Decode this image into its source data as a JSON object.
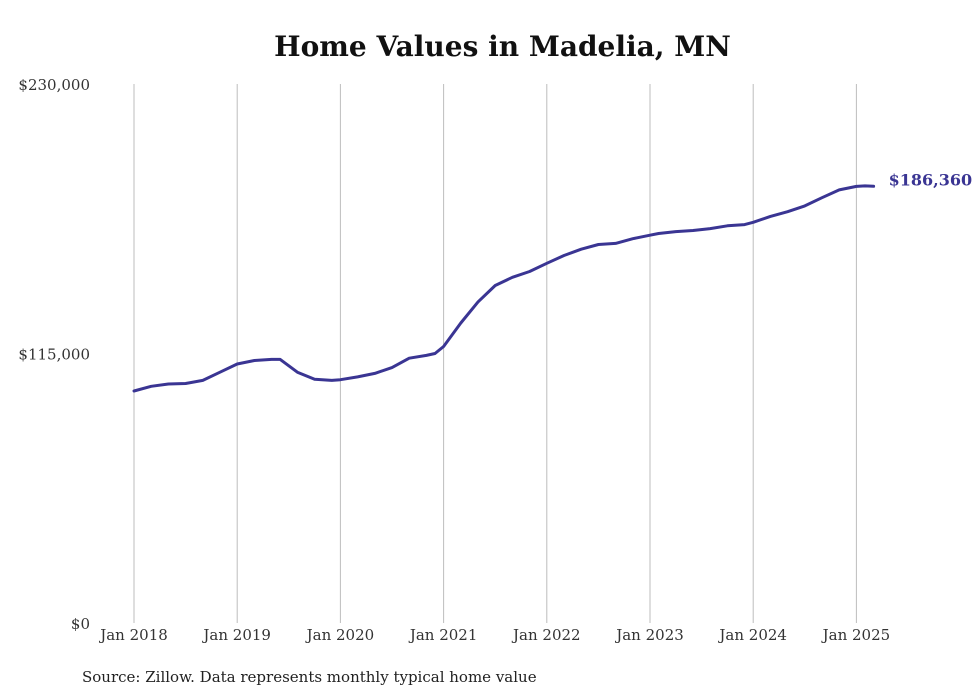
{
  "title": "Home Values in Madelia, MN",
  "source": "Source: Zillow. Data represents monthly typical home value",
  "chart_data": {
    "type": "line",
    "title": "Home Values in Madelia, MN",
    "xlabel": "",
    "ylabel": "",
    "ylim": [
      0,
      230000
    ],
    "yticks": [
      0,
      115000,
      230000
    ],
    "ytick_labels": [
      "$0",
      "$115,000",
      "$230,000"
    ],
    "xticks": [
      "Jan 2018",
      "Jan 2019",
      "Jan 2020",
      "Jan 2021",
      "Jan 2022",
      "Jan 2023",
      "Jan 2024",
      "Jan 2025"
    ],
    "grid": "vertical",
    "line_color": "#3a3593",
    "end_label": "$186,360",
    "series": [
      {
        "x": [
          "2018-01",
          "2018-03",
          "2018-05",
          "2018-07",
          "2018-09",
          "2018-11",
          "2019-01",
          "2019-03",
          "2019-05",
          "2019-06",
          "2019-08",
          "2019-10",
          "2019-12",
          "2020-01",
          "2020-03",
          "2020-05",
          "2020-07",
          "2020-09",
          "2020-11",
          "2020-12",
          "2021-01",
          "2021-03",
          "2021-05",
          "2021-07",
          "2021-09",
          "2021-11",
          "2022-01",
          "2022-03",
          "2022-05",
          "2022-07",
          "2022-09",
          "2022-11",
          "2023-01",
          "2023-02",
          "2023-04",
          "2023-06",
          "2023-08",
          "2023-10",
          "2023-12",
          "2024-01",
          "2024-03",
          "2024-05",
          "2024-07",
          "2024-09",
          "2024-11",
          "2025-01",
          "2025-02",
          "2025-03"
        ],
        "values": [
          99000,
          101000,
          102000,
          102200,
          103500,
          107000,
          110500,
          112000,
          112500,
          112500,
          107000,
          104000,
          103500,
          103800,
          105000,
          106500,
          109000,
          113000,
          114200,
          115000,
          118000,
          128000,
          137000,
          144000,
          147500,
          150000,
          153500,
          156800,
          159500,
          161500,
          162000,
          164000,
          165500,
          166200,
          167000,
          167500,
          168300,
          169500,
          170000,
          171000,
          173500,
          175500,
          178000,
          181500,
          184800,
          186300,
          186500,
          186360
        ]
      }
    ]
  }
}
